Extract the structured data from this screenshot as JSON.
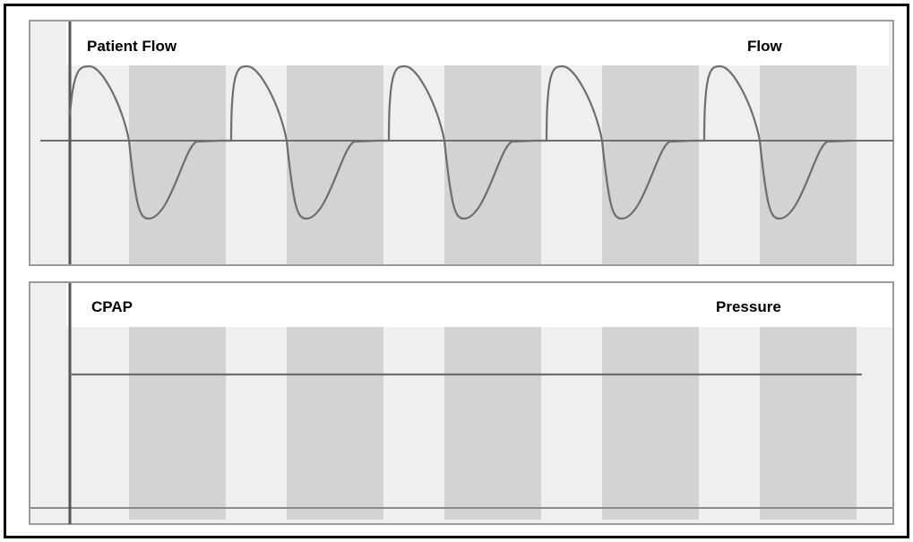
{
  "top_panel": {
    "title": "Patient Flow",
    "right_label": "Flow"
  },
  "bottom_panel": {
    "title": "CPAP",
    "right_label": "Pressure"
  },
  "chart_data": [
    {
      "type": "line",
      "title": "Patient Flow",
      "label": "Flow",
      "breath_cycles": 5,
      "series": [
        {
          "values": [
            1,
            0,
            -1,
            0,
            0
          ]
        }
      ],
      "grid": false
    },
    {
      "type": "line",
      "title": "CPAP",
      "label": "Pressure",
      "breath_cycles": 5,
      "series": [
        {
          "values": [
            1,
            1,
            1,
            1,
            1
          ]
        }
      ],
      "grid": false
    }
  ],
  "colors": {
    "frame": "#000000",
    "panel_border": "#9a9a9a",
    "panel_bg": "#efefef",
    "band": "#d3d3d3",
    "trace": "#6e6e6e",
    "axis": "#555555"
  }
}
